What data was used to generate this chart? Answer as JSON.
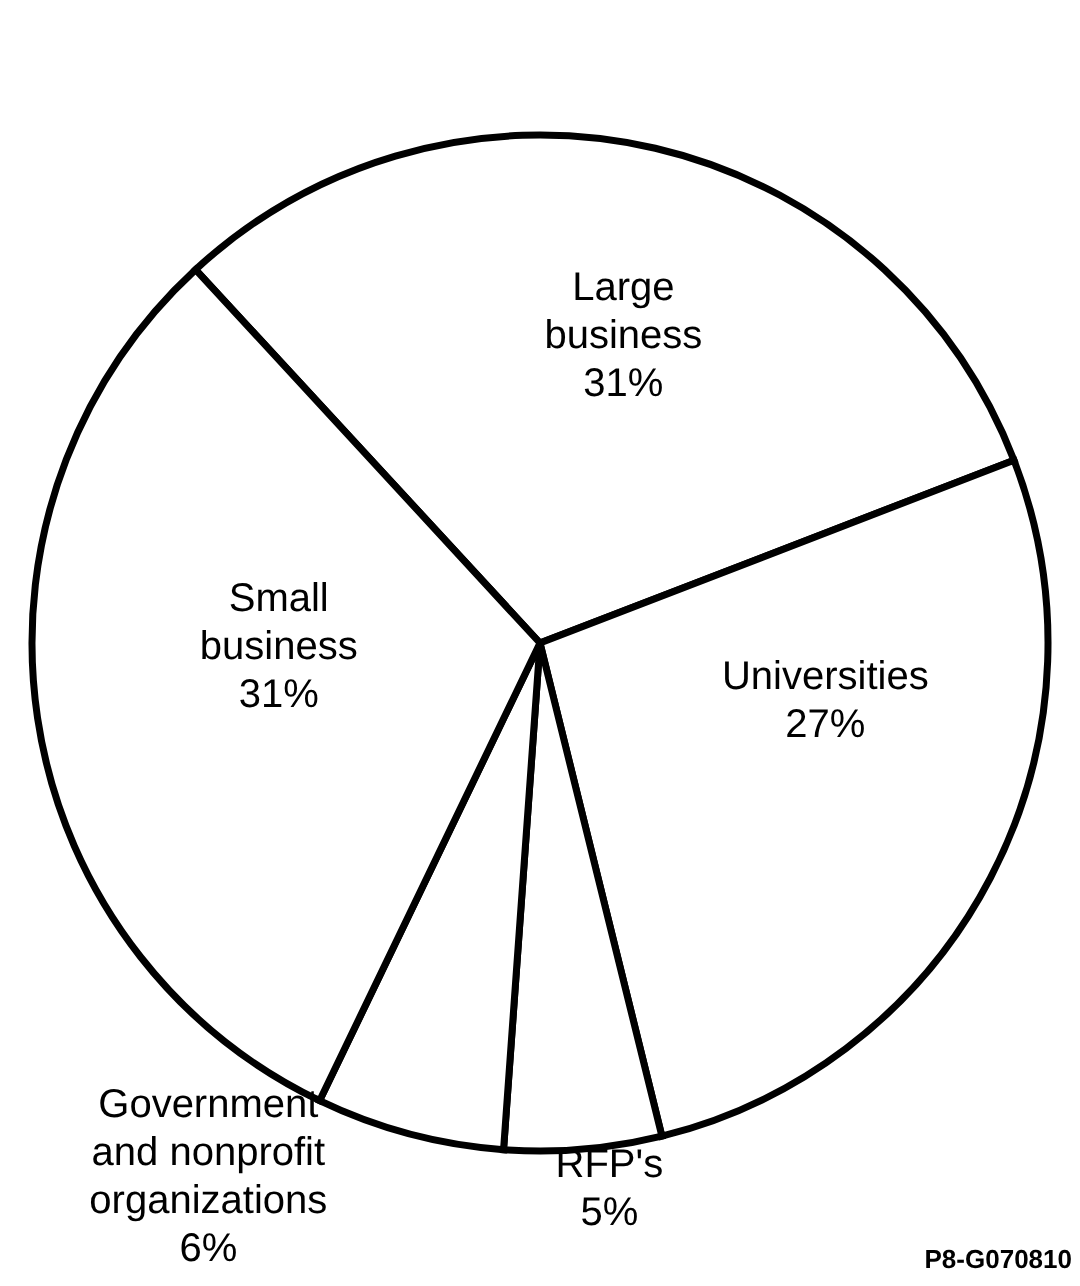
{
  "chart_data": {
    "type": "pie",
    "categories": [
      "Large business",
      "Universities",
      "RFP's",
      "Government and nonprofit organizations",
      "Small business"
    ],
    "values": [
      31,
      27,
      5,
      6,
      31
    ],
    "value_labels": [
      "31%",
      "27%",
      "5%",
      "6%",
      "31%"
    ],
    "colors": [
      "#ffffff",
      "#ffffff",
      "#ffffff",
      "#ffffff",
      "#ffffff"
    ],
    "annotations": [
      "P8-G070810"
    ]
  }
}
